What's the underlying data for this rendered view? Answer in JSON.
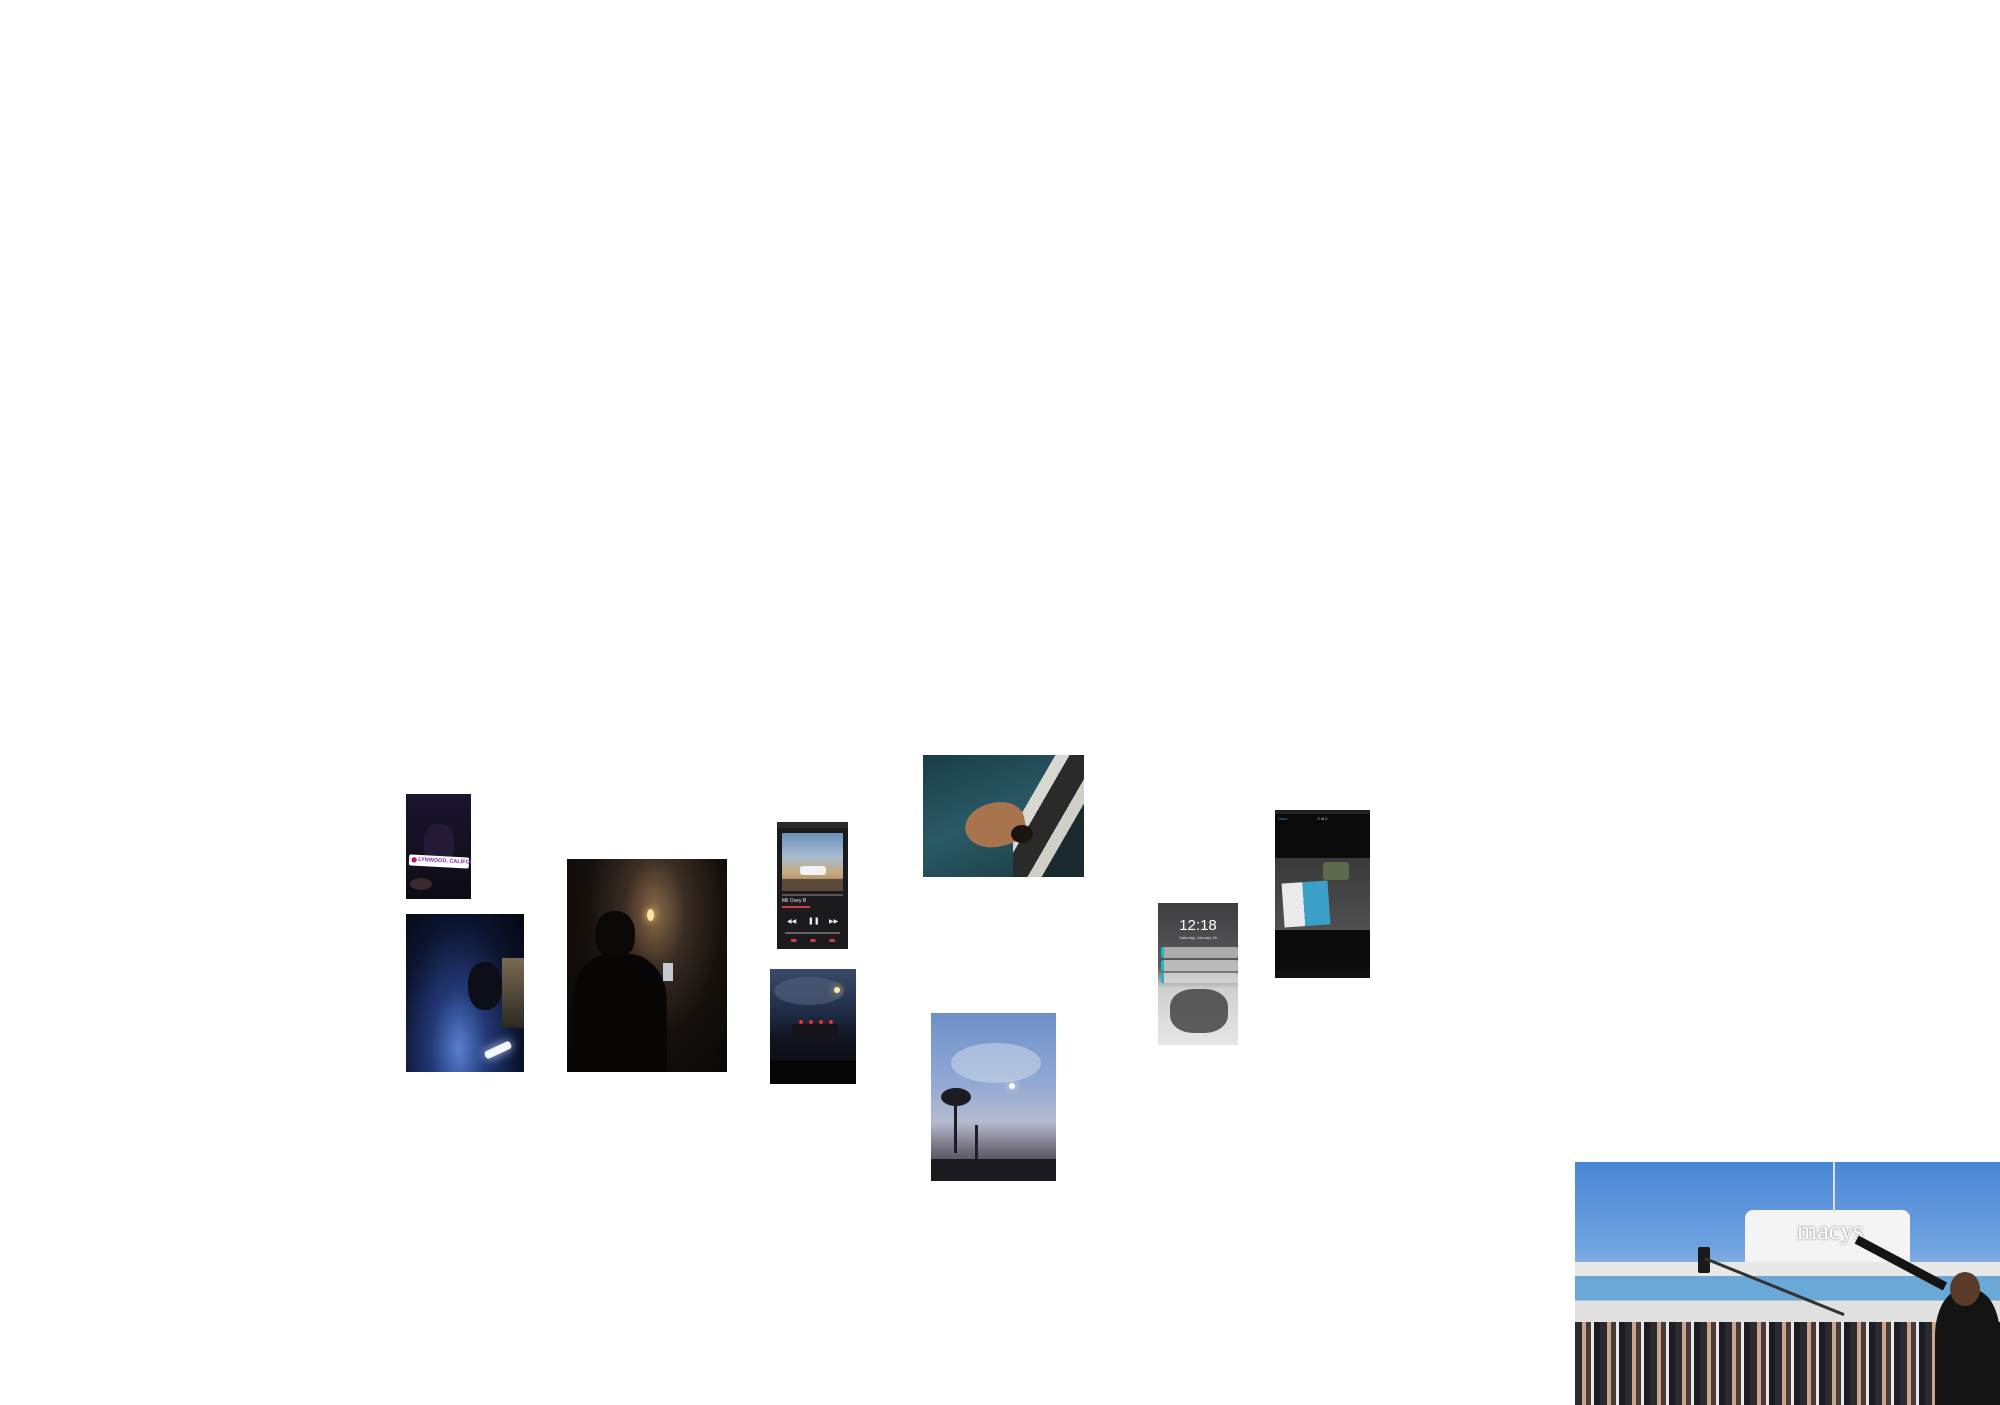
{
  "photos": {
    "location_sticker": "LYNWOOD, CALIFORNIA",
    "music_player": {
      "track_title": "Mil Oxey B",
      "track_artist": "",
      "controls": [
        "◀◀",
        "❚❚",
        "▶▶"
      ]
    },
    "lockscreen": {
      "time": "12:18",
      "date": "Saturday, January 26"
    },
    "photo_viewer": {
      "counter": "2 of 2",
      "back_label": "Done"
    },
    "storefront_sign": "macys"
  },
  "icons": [
    "location-pin-icon",
    "rewind-icon",
    "pause-icon",
    "fast-forward-icon"
  ]
}
